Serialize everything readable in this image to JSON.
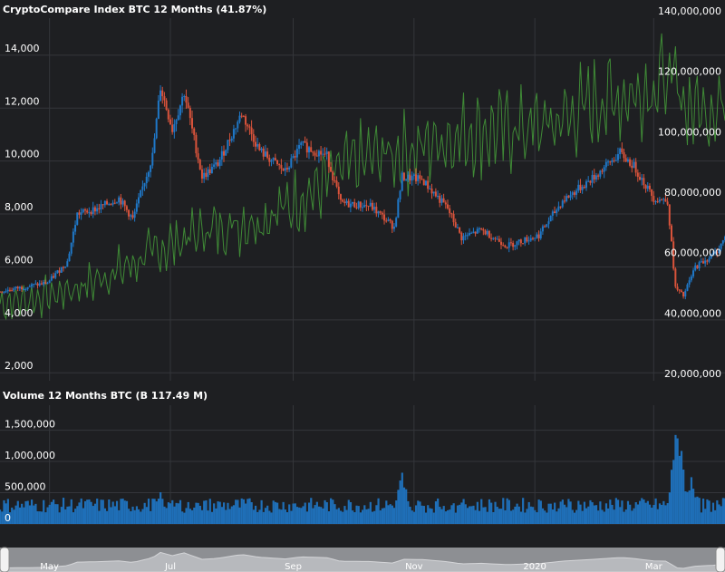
{
  "chart_data": [
    {
      "type": "candlestick",
      "title": "CryptoCompare Index BTC 12 Months (41.87%)",
      "y_left_ticks": [
        "2,000",
        "4,000",
        "6,000",
        "8,000",
        "10,000",
        "12,000",
        "14,000"
      ],
      "y_left_values": [
        2000,
        4000,
        6000,
        8000,
        10000,
        12000,
        14000
      ],
      "ylim_left": [
        1700,
        15400
      ],
      "y_right_ticks": [
        "20,000,000",
        "40,000,000",
        "60,000,000",
        "80,000,000",
        "100,000,000",
        "120,000,000",
        "140,000,000"
      ],
      "y_right_values": [
        20000000,
        40000000,
        60000000,
        80000000,
        100000000,
        120000000,
        140000000
      ],
      "ylim_right": [
        20000000,
        140000000
      ],
      "price_series": {
        "name": "BTC price",
        "points": [
          [
            "2019-04-01",
            5000
          ],
          [
            "2019-04-15",
            5200
          ],
          [
            "2019-04-30",
            5400
          ],
          [
            "2019-05-10",
            6200
          ],
          [
            "2019-05-15",
            8000
          ],
          [
            "2019-05-25",
            8200
          ],
          [
            "2019-06-05",
            8600
          ],
          [
            "2019-06-12",
            7800
          ],
          [
            "2019-06-22",
            10200
          ],
          [
            "2019-06-26",
            12800
          ],
          [
            "2019-07-02",
            11200
          ],
          [
            "2019-07-08",
            12600
          ],
          [
            "2019-07-17",
            9400
          ],
          [
            "2019-07-25",
            9900
          ],
          [
            "2019-08-06",
            11800
          ],
          [
            "2019-08-15",
            10400
          ],
          [
            "2019-08-28",
            9600
          ],
          [
            "2019-09-05",
            10600
          ],
          [
            "2019-09-18",
            10200
          ],
          [
            "2019-09-25",
            8400
          ],
          [
            "2019-10-10",
            8300
          ],
          [
            "2019-10-22",
            7500
          ],
          [
            "2019-10-26",
            9400
          ],
          [
            "2019-11-05",
            9300
          ],
          [
            "2019-11-18",
            8200
          ],
          [
            "2019-11-25",
            7100
          ],
          [
            "2019-12-05",
            7400
          ],
          [
            "2019-12-18",
            6800
          ],
          [
            "2020-01-03",
            7200
          ],
          [
            "2020-01-15",
            8500
          ],
          [
            "2020-01-31",
            9400
          ],
          [
            "2020-02-13",
            10300
          ],
          [
            "2020-02-20",
            9800
          ],
          [
            "2020-03-01",
            8600
          ],
          [
            "2020-03-08",
            8500
          ],
          [
            "2020-03-12",
            5200
          ],
          [
            "2020-03-16",
            4900
          ],
          [
            "2020-03-22",
            6000
          ],
          [
            "2020-04-01",
            6500
          ],
          [
            "2020-04-06",
            7100
          ]
        ]
      },
      "volume_line": {
        "name": "Volume",
        "points": [
          [
            "2019-04-01",
            45000000
          ],
          [
            "2019-05-01",
            48000000
          ],
          [
            "2019-05-20",
            52000000
          ],
          [
            "2019-06-10",
            58000000
          ],
          [
            "2019-07-01",
            65000000
          ],
          [
            "2019-07-20",
            70000000
          ],
          [
            "2019-08-15",
            73000000
          ],
          [
            "2019-09-10",
            82000000
          ],
          [
            "2019-09-25",
            90000000
          ],
          [
            "2019-10-15",
            95000000
          ],
          [
            "2019-11-01",
            96000000
          ],
          [
            "2019-11-15",
            100000000
          ],
          [
            "2019-12-01",
            102000000
          ],
          [
            "2019-12-20",
            103000000
          ],
          [
            "2020-01-10",
            105000000
          ],
          [
            "2020-02-01",
            112000000
          ],
          [
            "2020-02-20",
            115000000
          ],
          [
            "2020-03-08",
            120000000
          ],
          [
            "2020-03-20",
            110000000
          ],
          [
            "2020-04-06",
            112000000
          ]
        ]
      }
    },
    {
      "type": "bar",
      "title": "Volume 12 Months BTC (B 117.49 M)",
      "y_ticks": [
        "0",
        "500,000",
        "1,000,000",
        "1,500,000"
      ],
      "y_values": [
        0,
        500000,
        1000000,
        1500000
      ],
      "ylim": [
        0,
        1900000
      ],
      "base_level": 300000,
      "peaks": [
        [
          "2019-06-26",
          520000
        ],
        [
          "2019-07-15",
          420000
        ],
        [
          "2019-10-26",
          880000
        ],
        [
          "2019-11-25",
          480000
        ],
        [
          "2020-01-15",
          430000
        ],
        [
          "2020-03-12",
          1150000
        ],
        [
          "2020-03-13",
          1850000
        ],
        [
          "2020-03-20",
          900000
        ]
      ]
    }
  ],
  "x_axis": {
    "start": "2019-04-06",
    "end": "2020-04-06",
    "labels": [
      {
        "text": "May",
        "date": "2019-05-01"
      },
      {
        "text": "Jul",
        "date": "2019-07-01"
      },
      {
        "text": "Sep",
        "date": "2019-09-01"
      },
      {
        "text": "Nov",
        "date": "2019-11-01"
      },
      {
        "text": "2020",
        "date": "2020-01-01"
      },
      {
        "text": "Mar",
        "date": "2020-03-01"
      }
    ]
  },
  "colors": {
    "up": "#1f78c8",
    "down": "#d9533b",
    "volume_line": "#3f8a36",
    "volume_bar": "#1f6fb8",
    "background": "#1e1f22",
    "grid": "#34363b"
  }
}
